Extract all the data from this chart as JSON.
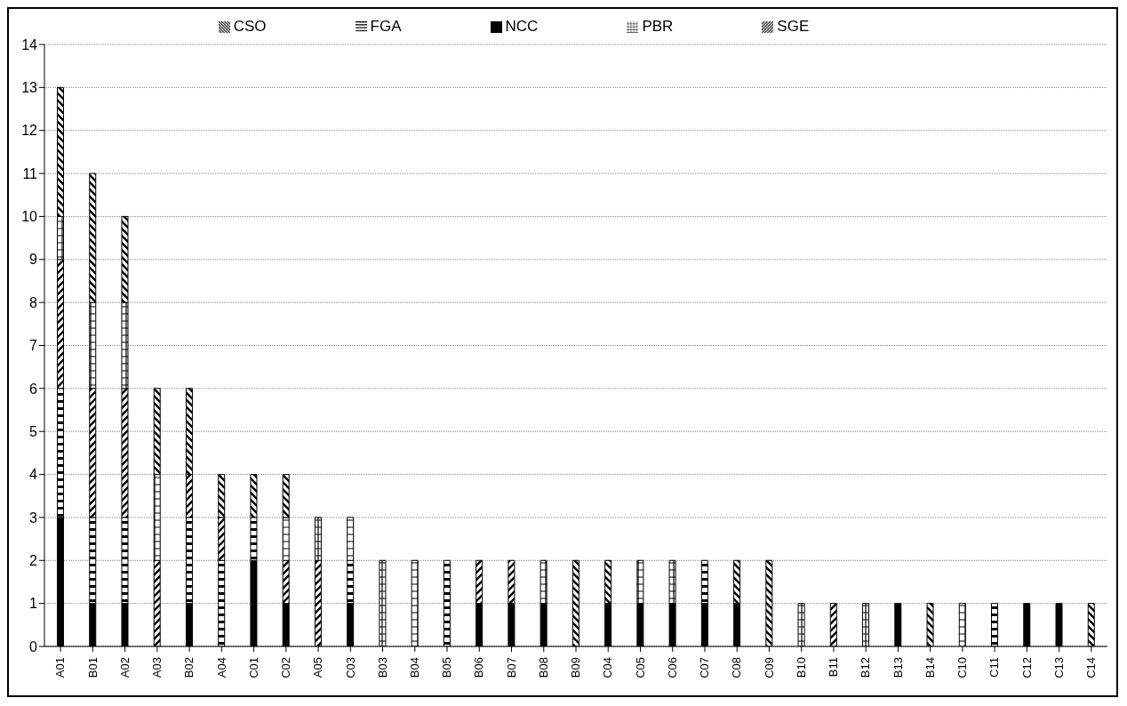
{
  "chart_data": {
    "type": "bar",
    "stacked": true,
    "categories": [
      "A01",
      "B01",
      "A02",
      "A03",
      "B02",
      "A04",
      "C01",
      "C02",
      "A05",
      "C03",
      "B03",
      "B04",
      "B05",
      "B06",
      "B07",
      "B08",
      "B09",
      "C04",
      "C05",
      "C06",
      "C07",
      "C08",
      "C09",
      "B10",
      "B11",
      "B12",
      "B13",
      "B14",
      "C10",
      "C11",
      "C12",
      "C13",
      "C14"
    ],
    "series": [
      {
        "name": "NCC",
        "color": "#000000",
        "values": [
          3,
          1,
          1,
          0,
          1,
          0,
          2,
          1,
          0,
          1,
          0,
          0,
          0,
          1,
          1,
          1,
          0,
          1,
          1,
          1,
          1,
          1,
          0,
          0,
          0,
          0,
          1,
          0,
          0,
          0,
          1,
          1,
          0
        ]
      },
      {
        "name": "FGA",
        "color": "#000000",
        "values": [
          3,
          2,
          2,
          0,
          2,
          2,
          1,
          0,
          0,
          1,
          0,
          0,
          2,
          0,
          0,
          0,
          0,
          0,
          0,
          0,
          1,
          0,
          0,
          0,
          0,
          0,
          0,
          0,
          0,
          1,
          0,
          0,
          0
        ]
      },
      {
        "name": "SGE",
        "color": "#000000",
        "values": [
          3,
          3,
          3,
          2,
          1,
          1,
          0,
          1,
          2,
          0,
          0,
          0,
          0,
          1,
          1,
          0,
          0,
          0,
          0,
          0,
          0,
          0,
          0,
          0,
          1,
          0,
          0,
          0,
          0,
          0,
          0,
          0,
          0
        ]
      },
      {
        "name": "PBR",
        "color": "#000000",
        "values": [
          1,
          2,
          2,
          2,
          0,
          0,
          0,
          1,
          1,
          1,
          2,
          2,
          0,
          0,
          0,
          1,
          0,
          0,
          1,
          1,
          0,
          0,
          0,
          1,
          0,
          1,
          0,
          0,
          1,
          0,
          0,
          0,
          0
        ]
      },
      {
        "name": "CSO",
        "color": "#000000",
        "values": [
          3,
          3,
          2,
          2,
          2,
          1,
          1,
          1,
          0,
          0,
          0,
          0,
          0,
          0,
          0,
          0,
          2,
          1,
          0,
          0,
          0,
          1,
          2,
          0,
          0,
          0,
          0,
          1,
          0,
          0,
          0,
          0,
          1
        ]
      }
    ],
    "ylim": [
      0,
      14
    ],
    "yticks": [
      0,
      1,
      2,
      3,
      4,
      5,
      6,
      7,
      8,
      9,
      10,
      11,
      12,
      13,
      14
    ],
    "grid": "y",
    "legend": "top"
  }
}
